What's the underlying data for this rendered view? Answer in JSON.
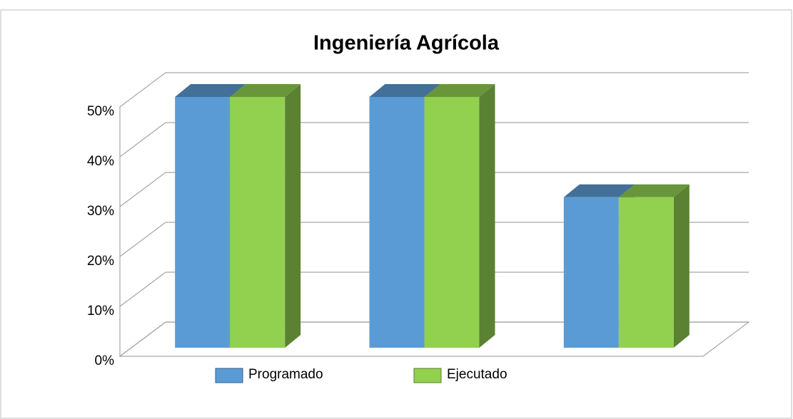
{
  "chart_data": {
    "type": "bar3d",
    "title": "Ingeniería Agrícola",
    "categories": [
      null,
      null,
      null
    ],
    "series": [
      {
        "name": "Programado",
        "color": "#5b9bd5",
        "values": [
          50,
          50,
          30
        ]
      },
      {
        "name": "Ejecutado",
        "color": "#92d050",
        "values": [
          50,
          50,
          30
        ]
      }
    ],
    "ylim": [
      0,
      50
    ],
    "yticks": [
      {
        "value": 0,
        "label": "0%"
      },
      {
        "value": 10,
        "label": "10%"
      },
      {
        "value": 20,
        "label": "20%"
      },
      {
        "value": 30,
        "label": "30%"
      },
      {
        "value": 40,
        "label": "40%"
      },
      {
        "value": 50,
        "label": "50%"
      }
    ],
    "grid": true,
    "legend": "bottom"
  }
}
